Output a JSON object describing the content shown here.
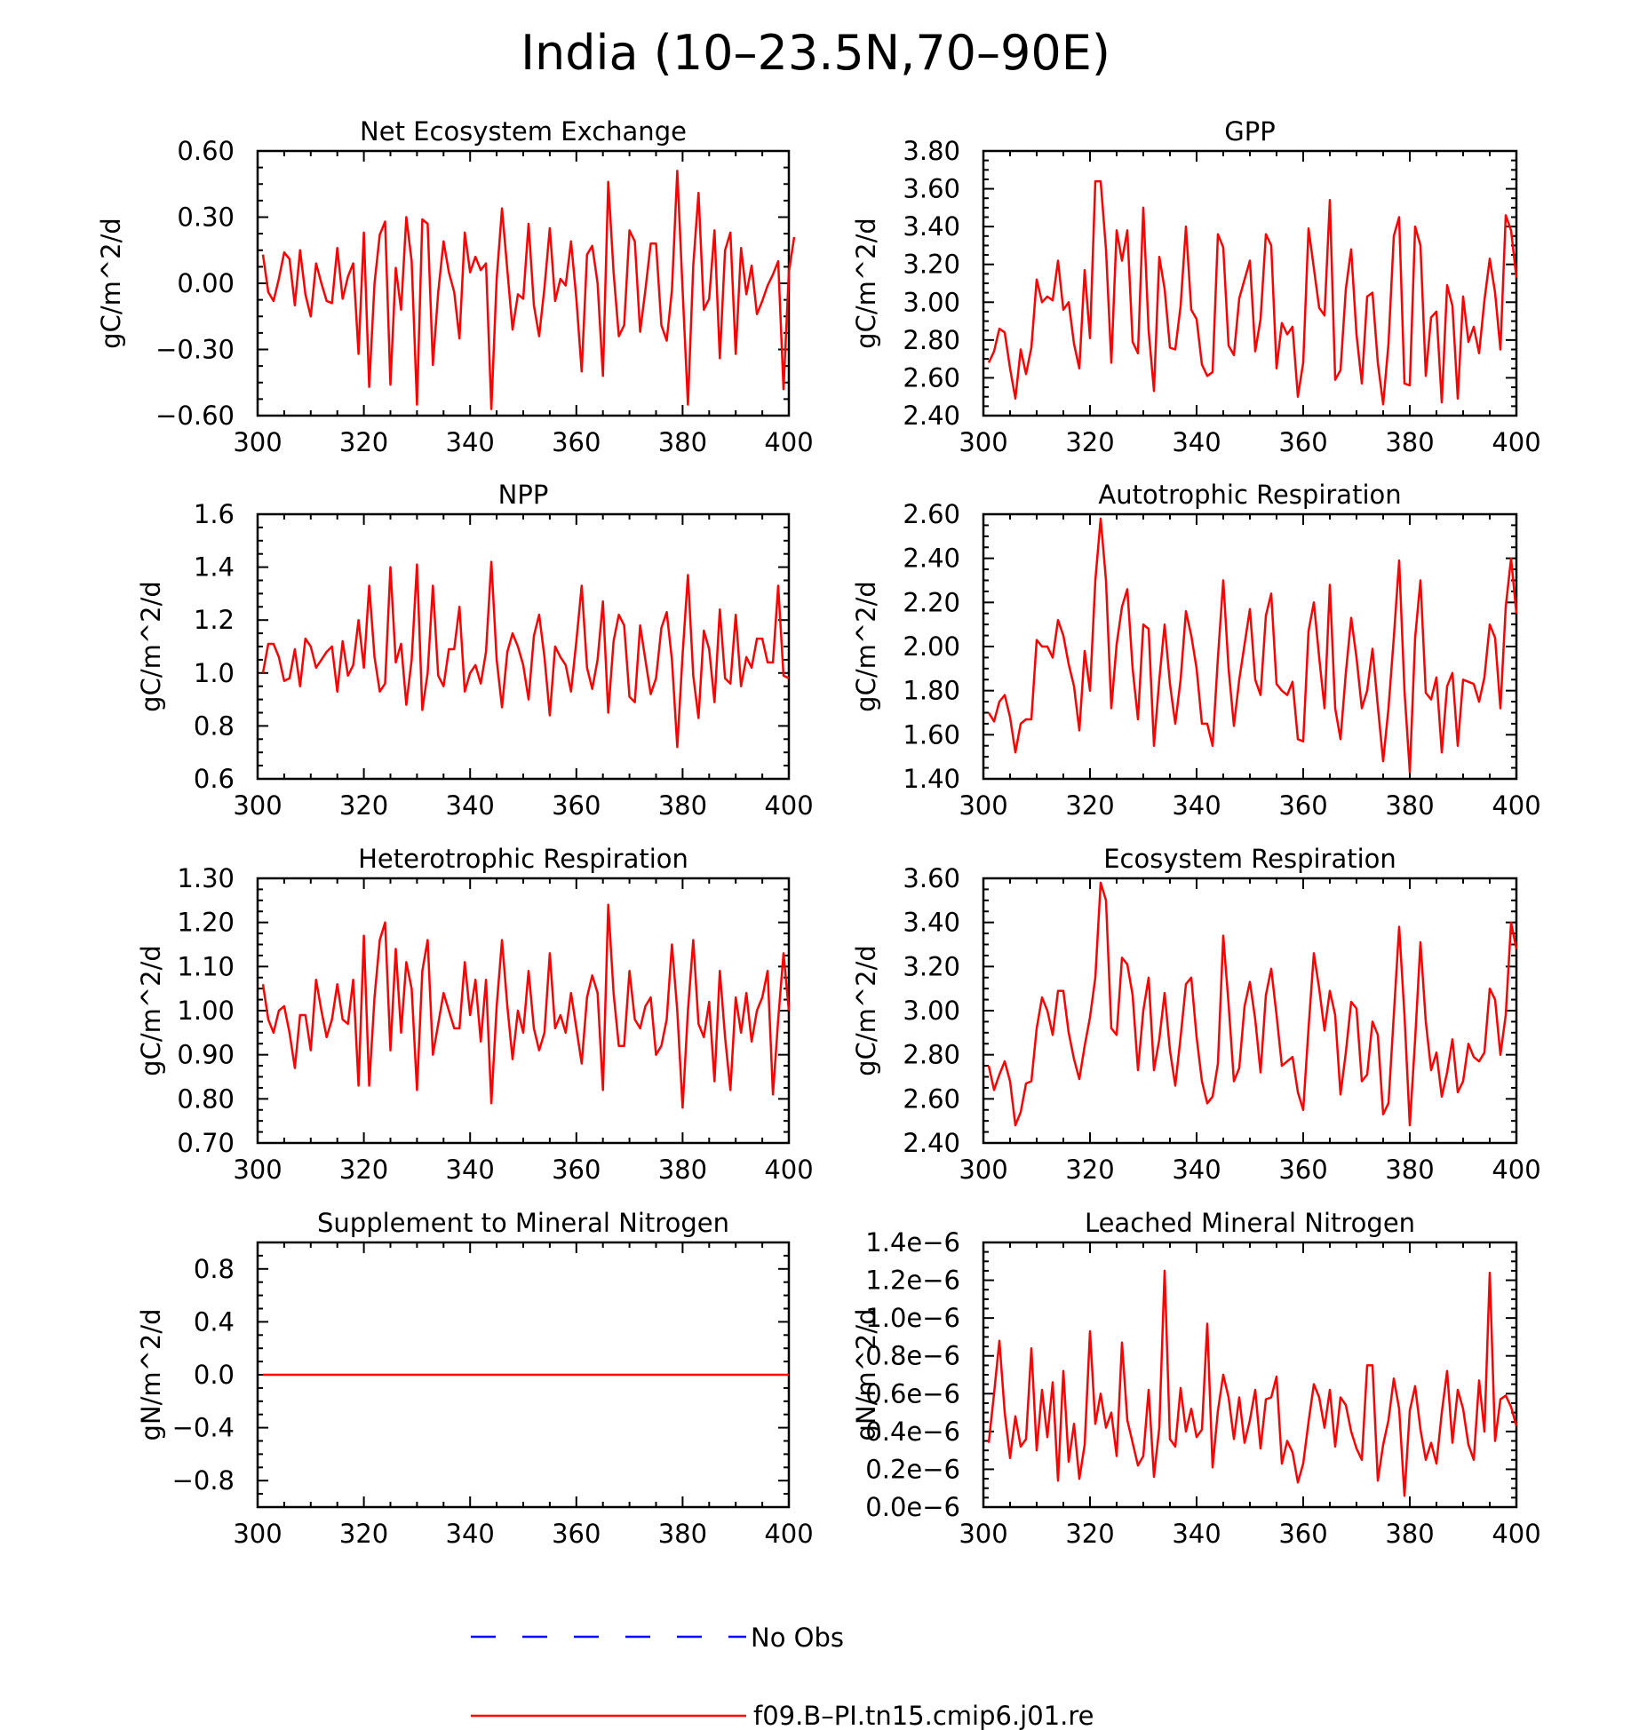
{
  "title": "India (10–23.5N,70–90E)",
  "colors": {
    "model": "#ff0000",
    "obs": "#0000ff",
    "axis": "#000000"
  },
  "legend": {
    "entries": [
      {
        "label": "No Obs",
        "style": "dashed",
        "color": "#0000ff"
      },
      {
        "label": "f09.B–PI.tn15.cmip6.j01.re",
        "style": "solid",
        "color": "#ff0000"
      }
    ]
  },
  "chart_data": [
    {
      "type": "line",
      "title": "Net Ecosystem Exchange",
      "ylabel": "gC/m^2/d",
      "xlim": [
        300,
        400
      ],
      "ylim": [
        -0.6,
        0.6
      ],
      "xticks": [
        "300",
        "320",
        "340",
        "360",
        "380",
        "400"
      ],
      "yticks": [
        {
          "v": -0.6,
          "t": "−0.60"
        },
        {
          "v": -0.3,
          "t": "−0.30"
        },
        {
          "v": 0.0,
          "t": "0.00"
        },
        {
          "v": 0.3,
          "t": "0.30"
        },
        {
          "v": 0.6,
          "t": "0.60"
        }
      ],
      "x_start": 301,
      "series": [
        {
          "values": [
            0.13,
            -0.04,
            -0.08,
            0.02,
            0.14,
            0.11,
            -0.1,
            0.15,
            -0.05,
            -0.15,
            0.09,
            0.0,
            -0.08,
            -0.09,
            0.16,
            -0.07,
            0.03,
            0.09,
            -0.32,
            0.23,
            -0.47,
            0.0,
            0.22,
            0.28,
            -0.46,
            0.07,
            -0.12,
            0.3,
            0.1,
            -0.55,
            0.29,
            0.27,
            -0.37,
            -0.04,
            0.19,
            0.05,
            -0.04,
            -0.25,
            0.23,
            0.05,
            0.12,
            0.06,
            0.09,
            -0.57,
            0.02,
            0.34,
            0.06,
            -0.21,
            -0.05,
            -0.07,
            0.27,
            -0.1,
            -0.24,
            -0.02,
            0.25,
            -0.08,
            0.02,
            -0.01,
            0.19,
            -0.07,
            -0.4,
            0.13,
            0.17,
            0.0,
            -0.42,
            0.46,
            0.05,
            -0.24,
            -0.19,
            0.24,
            0.19,
            -0.22,
            -0.03,
            0.18,
            0.18,
            -0.19,
            -0.26,
            -0.03,
            0.51,
            -0.03,
            -0.55,
            0.08,
            0.41,
            -0.12,
            -0.07,
            0.24,
            -0.34,
            0.15,
            0.23,
            -0.32,
            0.16,
            -0.05,
            0.08,
            -0.14,
            -0.08,
            -0.01,
            0.04,
            0.1,
            -0.48,
            0.05,
            0.21
          ]
        }
      ]
    },
    {
      "type": "line",
      "title": "GPP",
      "ylabel": "gC/m^2/d",
      "xlim": [
        300,
        400
      ],
      "ylim": [
        2.4,
        3.8
      ],
      "xticks": [
        "300",
        "320",
        "340",
        "360",
        "380",
        "400"
      ],
      "yticks": [
        {
          "v": 2.4,
          "t": "2.40"
        },
        {
          "v": 2.6,
          "t": "2.60"
        },
        {
          "v": 2.8,
          "t": "2.80"
        },
        {
          "v": 3.0,
          "t": "3.00"
        },
        {
          "v": 3.2,
          "t": "3.20"
        },
        {
          "v": 3.4,
          "t": "3.40"
        },
        {
          "v": 3.6,
          "t": "3.60"
        },
        {
          "v": 3.8,
          "t": "3.80"
        }
      ],
      "x_start": 301,
      "series": [
        {
          "values": [
            2.68,
            2.74,
            2.86,
            2.84,
            2.65,
            2.49,
            2.75,
            2.62,
            2.76,
            3.12,
            3.0,
            3.03,
            3.01,
            3.22,
            2.96,
            3.0,
            2.78,
            2.65,
            3.17,
            2.81,
            3.64,
            3.64,
            3.28,
            2.68,
            3.38,
            3.22,
            3.38,
            2.79,
            2.73,
            3.5,
            2.85,
            2.53,
            3.24,
            3.07,
            2.76,
            2.75,
            2.98,
            3.4,
            2.96,
            2.91,
            2.67,
            2.61,
            2.63,
            3.36,
            3.29,
            2.77,
            2.72,
            3.02,
            3.12,
            3.22,
            2.74,
            2.91,
            3.36,
            3.3,
            2.65,
            2.89,
            2.83,
            2.87,
            2.5,
            2.68,
            3.39,
            3.18,
            2.97,
            2.93,
            3.54,
            2.59,
            2.64,
            3.07,
            3.28,
            2.83,
            2.57,
            3.03,
            3.05,
            2.68,
            2.46,
            2.78,
            3.35,
            3.45,
            2.57,
            2.56,
            3.4,
            3.3,
            2.61,
            2.92,
            2.95,
            2.47,
            3.09,
            2.98,
            2.49,
            3.03,
            2.79,
            2.87,
            2.73,
            3.01,
            3.23,
            3.05,
            2.75,
            3.46,
            3.38,
            3.13
          ]
        }
      ]
    },
    {
      "type": "line",
      "title": "NPP",
      "ylabel": "gC/m^2/d",
      "xlim": [
        300,
        400
      ],
      "ylim": [
        0.6,
        1.6
      ],
      "xticks": [
        "300",
        "320",
        "340",
        "360",
        "380",
        "400"
      ],
      "yticks": [
        {
          "v": 0.6,
          "t": "0.6"
        },
        {
          "v": 0.8,
          "t": "0.8"
        },
        {
          "v": 1.0,
          "t": "1.0"
        },
        {
          "v": 1.2,
          "t": "1.2"
        },
        {
          "v": 1.4,
          "t": "1.4"
        },
        {
          "v": 1.6,
          "t": "1.6"
        }
      ],
      "x_start": 301,
      "series": [
        {
          "values": [
            1.0,
            1.11,
            1.11,
            1.06,
            0.97,
            0.98,
            1.09,
            0.95,
            1.13,
            1.1,
            1.02,
            1.05,
            1.08,
            1.1,
            0.93,
            1.12,
            0.99,
            1.03,
            1.2,
            1.02,
            1.33,
            1.06,
            0.93,
            0.96,
            1.4,
            1.04,
            1.11,
            0.88,
            1.05,
            1.41,
            0.86,
            1.0,
            1.33,
            0.99,
            0.95,
            1.09,
            1.09,
            1.25,
            0.93,
            1.0,
            1.03,
            0.96,
            1.08,
            1.42,
            1.05,
            0.87,
            1.08,
            1.15,
            1.1,
            1.03,
            0.9,
            1.14,
            1.22,
            1.06,
            0.84,
            1.1,
            1.06,
            1.03,
            0.93,
            1.12,
            1.33,
            1.02,
            0.94,
            1.05,
            1.27,
            0.85,
            1.12,
            1.22,
            1.18,
            0.91,
            0.89,
            1.18,
            1.05,
            0.92,
            0.98,
            1.17,
            1.23,
            1.05,
            0.72,
            1.07,
            1.37,
            0.99,
            0.83,
            1.16,
            1.09,
            0.89,
            1.24,
            0.98,
            0.96,
            1.22,
            0.95,
            1.06,
            1.02,
            1.13,
            1.13,
            1.04,
            1.04,
            1.33,
            0.99,
            0.98
          ]
        }
      ]
    },
    {
      "type": "line",
      "title": "Autotrophic Respiration",
      "ylabel": "gC/m^2/d",
      "xlim": [
        300,
        400
      ],
      "ylim": [
        1.4,
        2.6
      ],
      "xticks": [
        "300",
        "320",
        "340",
        "360",
        "380",
        "400"
      ],
      "yticks": [
        {
          "v": 1.4,
          "t": "1.40"
        },
        {
          "v": 1.6,
          "t": "1.60"
        },
        {
          "v": 1.8,
          "t": "1.80"
        },
        {
          "v": 2.0,
          "t": "2.00"
        },
        {
          "v": 2.2,
          "t": "2.20"
        },
        {
          "v": 2.4,
          "t": "2.40"
        },
        {
          "v": 2.6,
          "t": "2.60"
        }
      ],
      "x_start": 301,
      "series": [
        {
          "values": [
            1.7,
            1.66,
            1.75,
            1.78,
            1.68,
            1.52,
            1.65,
            1.67,
            1.67,
            2.03,
            2.0,
            2.0,
            1.95,
            2.12,
            2.05,
            1.92,
            1.82,
            1.62,
            1.98,
            1.8,
            2.3,
            2.58,
            2.3,
            1.72,
            2.01,
            2.18,
            2.26,
            1.9,
            1.67,
            2.1,
            2.08,
            1.55,
            1.85,
            2.1,
            1.83,
            1.65,
            1.85,
            2.16,
            2.05,
            1.9,
            1.65,
            1.65,
            1.55,
            1.95,
            2.3,
            1.9,
            1.64,
            1.85,
            2.01,
            2.17,
            1.85,
            1.78,
            2.14,
            2.24,
            1.83,
            1.8,
            1.78,
            1.84,
            1.58,
            1.57,
            2.07,
            2.2,
            1.95,
            1.72,
            2.28,
            1.72,
            1.58,
            1.88,
            2.13,
            1.95,
            1.72,
            1.8,
            1.99,
            1.73,
            1.48,
            1.72,
            2.04,
            2.39,
            1.8,
            1.43,
            2.04,
            2.3,
            1.79,
            1.76,
            1.86,
            1.52,
            1.82,
            1.88,
            1.55,
            1.85,
            1.84,
            1.83,
            1.75,
            1.86,
            2.1,
            2.04,
            1.72,
            2.18,
            2.4,
            2.15
          ]
        }
      ]
    },
    {
      "type": "line",
      "title": "Heterotrophic Respiration",
      "ylabel": "gC/m^2/d",
      "xlim": [
        300,
        400
      ],
      "ylim": [
        0.7,
        1.3
      ],
      "xticks": [
        "300",
        "320",
        "340",
        "360",
        "380",
        "400"
      ],
      "yticks": [
        {
          "v": 0.7,
          "t": "0.70"
        },
        {
          "v": 0.8,
          "t": "0.80"
        },
        {
          "v": 0.9,
          "t": "0.90"
        },
        {
          "v": 1.0,
          "t": "1.00"
        },
        {
          "v": 1.1,
          "t": "1.10"
        },
        {
          "v": 1.2,
          "t": "1.20"
        },
        {
          "v": 1.3,
          "t": "1.30"
        }
      ],
      "x_start": 301,
      "series": [
        {
          "values": [
            1.06,
            0.98,
            0.95,
            1.0,
            1.01,
            0.95,
            0.87,
            0.99,
            0.99,
            0.91,
            1.07,
            1.0,
            0.94,
            0.98,
            1.06,
            0.98,
            0.97,
            1.07,
            0.83,
            1.17,
            0.83,
            1.03,
            1.16,
            1.2,
            0.91,
            1.14,
            0.95,
            1.11,
            1.05,
            0.82,
            1.09,
            1.16,
            0.9,
            0.97,
            1.04,
            1.0,
            0.96,
            0.96,
            1.11,
            0.99,
            1.07,
            0.93,
            1.07,
            0.79,
            1.01,
            1.16,
            1.01,
            0.89,
            1.0,
            0.95,
            1.09,
            0.96,
            0.91,
            0.95,
            1.13,
            0.96,
            0.99,
            0.95,
            1.04,
            0.96,
            0.88,
            1.03,
            1.08,
            1.04,
            0.82,
            1.24,
            1.04,
            0.92,
            0.92,
            1.09,
            0.98,
            0.96,
            1.01,
            1.03,
            0.9,
            0.92,
            0.98,
            1.15,
            1.0,
            0.78,
            1.0,
            1.16,
            0.97,
            0.94,
            1.02,
            0.84,
            1.09,
            0.94,
            0.82,
            1.03,
            0.95,
            1.04,
            0.93,
            1.0,
            1.03,
            1.09,
            0.81,
            0.98,
            1.13,
            1.0
          ]
        }
      ]
    },
    {
      "type": "line",
      "title": "Ecosystem Respiration",
      "ylabel": "gC/m^2/d",
      "xlim": [
        300,
        400
      ],
      "ylim": [
        2.4,
        3.6
      ],
      "xticks": [
        "300",
        "320",
        "340",
        "360",
        "380",
        "400"
      ],
      "yticks": [
        {
          "v": 2.4,
          "t": "2.40"
        },
        {
          "v": 2.6,
          "t": "2.60"
        },
        {
          "v": 2.8,
          "t": "2.80"
        },
        {
          "v": 3.0,
          "t": "3.00"
        },
        {
          "v": 3.2,
          "t": "3.20"
        },
        {
          "v": 3.4,
          "t": "3.40"
        },
        {
          "v": 3.6,
          "t": "3.60"
        }
      ],
      "x_start": 301,
      "series": [
        {
          "values": [
            2.75,
            2.64,
            2.71,
            2.77,
            2.68,
            2.48,
            2.54,
            2.67,
            2.68,
            2.92,
            3.06,
            3.0,
            2.89,
            3.09,
            3.09,
            2.9,
            2.78,
            2.69,
            2.84,
            2.97,
            3.15,
            3.58,
            3.5,
            2.92,
            2.89,
            3.24,
            3.21,
            3.07,
            2.73,
            3.0,
            3.15,
            2.73,
            2.87,
            3.08,
            2.82,
            2.66,
            2.88,
            3.12,
            3.15,
            2.88,
            2.68,
            2.58,
            2.61,
            2.76,
            3.34,
            3.03,
            2.68,
            2.74,
            3.02,
            3.13,
            2.96,
            2.72,
            3.07,
            3.19,
            2.98,
            2.75,
            2.77,
            2.79,
            2.63,
            2.55,
            2.92,
            3.26,
            3.1,
            2.91,
            3.09,
            2.98,
            2.62,
            2.81,
            3.04,
            3.01,
            2.68,
            2.71,
            2.95,
            2.89,
            2.53,
            2.58,
            2.98,
            3.38,
            2.98,
            2.48,
            2.87,
            3.31,
            2.95,
            2.73,
            2.81,
            2.61,
            2.72,
            2.87,
            2.63,
            2.68,
            2.85,
            2.79,
            2.77,
            2.81,
            3.1,
            3.05,
            2.8,
            2.98,
            3.4,
            3.28
          ]
        }
      ]
    },
    {
      "type": "line",
      "title": "Supplement to Mineral Nitrogen",
      "ylabel": "gN/m^2/d",
      "xlim": [
        300,
        400
      ],
      "ylim": [
        -1.0,
        1.0
      ],
      "xticks": [
        "300",
        "320",
        "340",
        "360",
        "380",
        "400"
      ],
      "yticks": [
        {
          "v": -0.8,
          "t": "−0.8"
        },
        {
          "v": -0.4,
          "t": "−0.4"
        },
        {
          "v": 0.0,
          "t": "0.0"
        },
        {
          "v": 0.4,
          "t": "0.4"
        },
        {
          "v": 0.8,
          "t": "0.8"
        }
      ],
      "x_start": 301,
      "series": [
        {
          "values": "constant",
          "constant_value": 0.0,
          "x_end": 400
        }
      ]
    },
    {
      "type": "line",
      "title": "Leached Mineral Nitrogen",
      "ylabel": "gN/m^2/d",
      "xlim": [
        300,
        400
      ],
      "ylim": [
        0.0,
        1.4
      ],
      "xticks": [
        "300",
        "320",
        "340",
        "360",
        "380",
        "400"
      ],
      "yticks": [
        {
          "v": 0.0,
          "t": "0.0e−6"
        },
        {
          "v": 0.2,
          "t": "0.2e−6"
        },
        {
          "v": 0.4,
          "t": "0.4e−6"
        },
        {
          "v": 0.6,
          "t": "0.6e−6"
        },
        {
          "v": 0.8,
          "t": "0.8e−6"
        },
        {
          "v": 1.0,
          "t": "1.0e−6"
        },
        {
          "v": 1.2,
          "t": "1.2e−6"
        },
        {
          "v": 1.4,
          "t": "1.4e−6"
        }
      ],
      "x_start": 301,
      "series": [
        {
          "values": [
            0.34,
            0.6,
            0.88,
            0.5,
            0.26,
            0.48,
            0.32,
            0.36,
            0.84,
            0.3,
            0.62,
            0.37,
            0.66,
            0.14,
            0.72,
            0.24,
            0.44,
            0.15,
            0.33,
            0.93,
            0.44,
            0.6,
            0.42,
            0.5,
            0.27,
            0.87,
            0.46,
            0.34,
            0.22,
            0.27,
            0.62,
            0.16,
            0.42,
            1.25,
            0.36,
            0.32,
            0.63,
            0.4,
            0.52,
            0.37,
            0.41,
            0.97,
            0.21,
            0.51,
            0.7,
            0.58,
            0.36,
            0.58,
            0.34,
            0.46,
            0.62,
            0.31,
            0.57,
            0.58,
            0.69,
            0.23,
            0.35,
            0.29,
            0.13,
            0.23,
            0.45,
            0.65,
            0.58,
            0.42,
            0.62,
            0.32,
            0.58,
            0.54,
            0.4,
            0.31,
            0.25,
            0.75,
            0.75,
            0.14,
            0.33,
            0.46,
            0.68,
            0.52,
            0.06,
            0.51,
            0.64,
            0.41,
            0.25,
            0.34,
            0.23,
            0.5,
            0.72,
            0.34,
            0.62,
            0.52,
            0.33,
            0.25,
            0.67,
            0.4,
            1.24,
            0.35,
            0.57,
            0.59,
            0.53,
            0.43
          ]
        }
      ]
    }
  ]
}
